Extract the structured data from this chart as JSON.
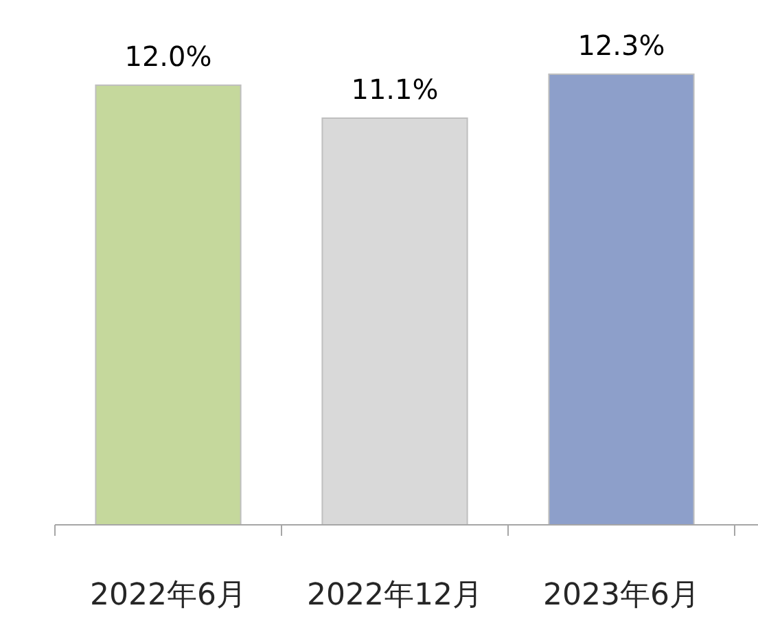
{
  "chart_data": {
    "type": "bar",
    "categories": [
      "2022年6月",
      "2022年12月",
      "2023年6月"
    ],
    "values": [
      12.0,
      11.1,
      12.3
    ],
    "colors": [
      "#c5d89c",
      "#d9d9d9",
      "#8d9fca"
    ],
    "value_labels": [
      "12.0%",
      "11.1%",
      "12.3%"
    ]
  }
}
